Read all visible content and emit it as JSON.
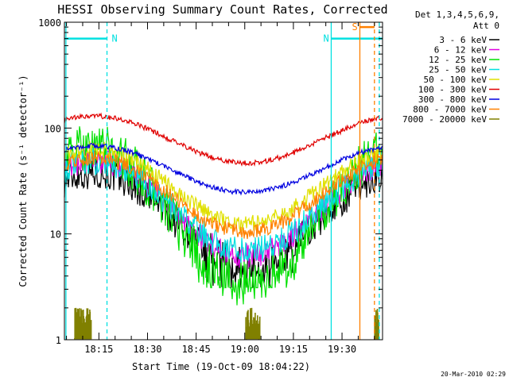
{
  "chart_data": {
    "type": "line",
    "title": "HESSI Observing Summary Count Rates, Corrected",
    "xlabel": "Start Time (19-Oct-09 18:04:22)",
    "ylabel": "Corrected Count Rate (s⁻¹ detector⁻¹)",
    "yscale": "log",
    "ylim": [
      1,
      1000
    ],
    "xlim": [
      "18:04:22",
      "19:42:30"
    ],
    "y_ticks": [
      "1",
      "10",
      "100",
      "1000"
    ],
    "x_ticks": [
      "18:15",
      "18:30",
      "18:45",
      "19:00",
      "19:15",
      "19:30"
    ],
    "grid": false,
    "legend_header": [
      "Det 1,3,4,5,6,9,",
      "Att 0"
    ],
    "legend_position": "right",
    "series": [
      {
        "name": "3 - 6 keV",
        "color": "#000000",
        "base": 14.5,
        "amplitude": 0.42,
        "noise": 0.16,
        "gaps": true
      },
      {
        "name": "6 - 12 keV",
        "color": "#e000e0",
        "base": 17.5,
        "amplitude": 0.45,
        "noise": 0.12,
        "gaps": false
      },
      {
        "name": "12 - 25 keV",
        "color": "#00e000",
        "base": 15.0,
        "amplitude": 0.65,
        "noise": 0.22,
        "gaps": true
      },
      {
        "name": "25 - 50 keV",
        "color": "#00e0e0",
        "base": 18.5,
        "amplitude": 0.42,
        "noise": 0.13,
        "gaps": false
      },
      {
        "name": "50 - 100 keV",
        "color": "#e0e000",
        "base": 28.0,
        "amplitude": 0.35,
        "noise": 0.08,
        "gaps": false
      },
      {
        "name": "100 - 300 keV",
        "color": "#e00000",
        "base": 78.0,
        "amplitude": 0.22,
        "noise": 0.025,
        "gaps": false
      },
      {
        "name": "300 - 800 keV",
        "color": "#0000e0",
        "base": 41.0,
        "amplitude": 0.22,
        "noise": 0.025,
        "gaps": false
      },
      {
        "name": "800 - 7000 keV",
        "color": "#ff8000",
        "base": 23.5,
        "amplitude": 0.35,
        "noise": 0.07,
        "gaps": false
      },
      {
        "name": "7000 - 20000 keV",
        "color": "#808000",
        "base": 1.0,
        "amplitude": 0.0,
        "noise": 0.0,
        "gaps": false
      }
    ],
    "annotations": [
      {
        "label": "N",
        "color": "#00e0e0",
        "start": "18:04:22",
        "end": "18:17:30",
        "level": 700
      },
      {
        "label": "N",
        "color": "#00e0e0",
        "start": "19:26:40",
        "end": "19:42:30",
        "level": 700
      },
      {
        "label": "S",
        "color": "#ff8000",
        "start": "19:35:30",
        "end": "19:40:00",
        "level": 900
      }
    ],
    "timestamp": "20-Mar-2010 02:29"
  }
}
